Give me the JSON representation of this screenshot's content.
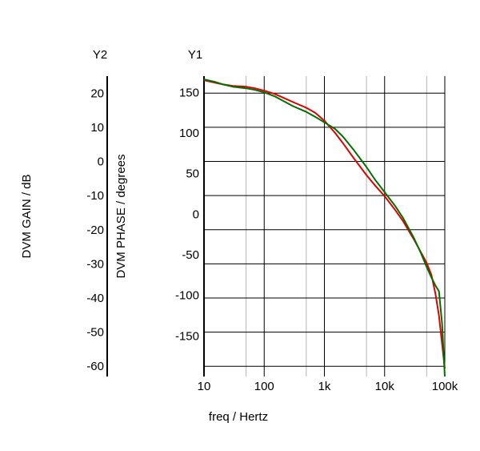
{
  "chart_data": {
    "type": "line",
    "x_scale": "log",
    "xlim": [
      10,
      100000
    ],
    "x_ticks": [
      10,
      100,
      1000,
      10000,
      100000
    ],
    "x_tick_labels": [
      "10",
      "100",
      "1k",
      "10k",
      "100k"
    ],
    "x_minor_ticks": [
      50,
      500,
      5000,
      50000
    ],
    "xlabel": "freq / Hertz",
    "y1": {
      "title": "Y1",
      "ylim": [
        -200,
        170
      ],
      "ticks": [
        150,
        100,
        50,
        0,
        -50,
        -100,
        -150
      ],
      "tick_labels": [
        "150",
        "100",
        "50",
        "0",
        "-50",
        "-100",
        "-150"
      ]
    },
    "y2": {
      "title": "Y2",
      "label": "DVM GAIN / dB",
      "ylim": [
        -63,
        25
      ],
      "ticks": [
        20,
        10,
        0,
        -10,
        -20,
        -30,
        -40,
        -50,
        -60
      ],
      "tick_labels": [
        "20",
        "10",
        "0",
        "-10",
        "-20",
        "-30",
        "-40",
        "-50",
        "-60"
      ]
    },
    "y_phase_label": "DVM PHASE / degrees",
    "grid": true,
    "series": [
      {
        "color": "#e00000",
        "x": [
          10,
          15,
          20,
          30,
          50,
          70,
          100,
          150,
          200,
          300,
          500,
          700,
          1000,
          1500,
          2000,
          3000,
          5000,
          7000,
          10000,
          15000,
          20000,
          30000,
          40000,
          50000,
          60000,
          70000,
          80000,
          90000,
          100000
        ],
        "y": [
          165,
          162,
          160,
          158,
          157,
          155,
          152,
          148,
          144,
          138,
          131,
          125,
          115,
          100,
          88,
          70,
          48,
          35,
          22,
          5,
          -8,
          -30,
          -47,
          -60,
          -75,
          -98,
          -125,
          -160,
          -190
        ]
      },
      {
        "color": "#007000",
        "x": [
          10,
          15,
          20,
          30,
          50,
          70,
          100,
          150,
          200,
          300,
          500,
          700,
          1000,
          1500,
          2000,
          3000,
          5000,
          7000,
          10000,
          15000,
          20000,
          30000,
          40000,
          50000,
          60000,
          70000,
          80000,
          90000,
          100000
        ],
        "y": [
          166,
          163,
          160,
          157,
          155,
          153,
          150,
          145,
          140,
          133,
          126,
          120,
          113,
          105,
          96,
          80,
          58,
          42,
          27,
          10,
          -4,
          -28,
          -48,
          -65,
          -78,
          -88,
          -95,
          -135,
          -200
        ]
      }
    ]
  }
}
